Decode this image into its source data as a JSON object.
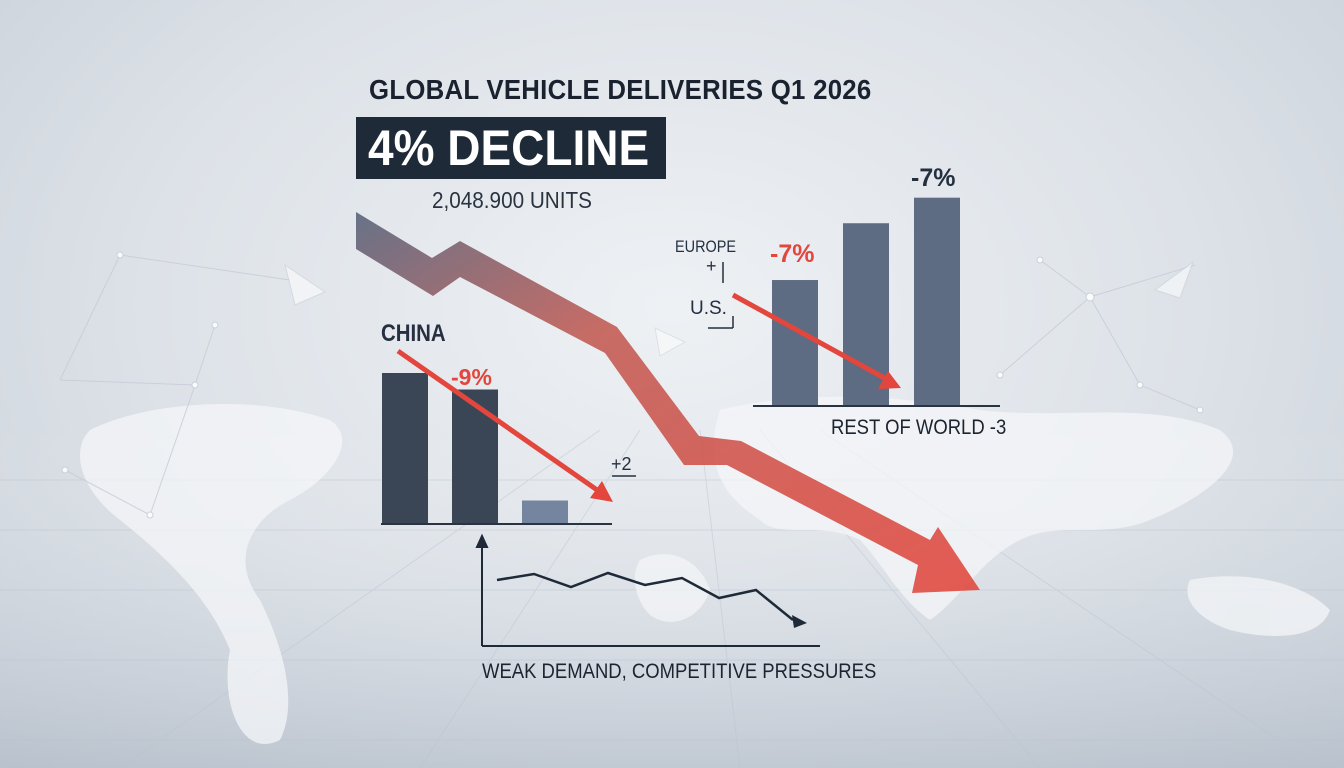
{
  "header": {
    "title": "GLOBAL VEHICLE DELIVERIES Q1 2026",
    "headline": "4% DECLINE",
    "units": "2,048.900 UNITS"
  },
  "labels": {
    "china": "CHINA",
    "china_change": "-9%",
    "plus_two": "+2",
    "europe": "EUROPE",
    "europe_mark": "+",
    "us": "U.S.",
    "europe_change": "-7%",
    "top_change": "-7%",
    "rest_of_world": "REST OF WORLD -3",
    "caption": "WEAK DEMAND, COMPETITIVE PRESSURES"
  },
  "colors": {
    "dark_bar": "#3a4556",
    "mid_bar": "#5d6c82",
    "light_bar": "#7585a0",
    "decline_red": "#e2463c",
    "trend_line": "#1f2a38",
    "headline_box": "#1f2a38"
  },
  "chart_data": [
    {
      "type": "bar",
      "categories": [
        "",
        "",
        ""
      ],
      "values": [
        100,
        89,
        15
      ],
      "annotations": [
        "CHINA",
        "-9%",
        "+2"
      ]
    },
    {
      "type": "bar",
      "categories": [
        "",
        "",
        ""
      ],
      "values": [
        88,
        128,
        146
      ],
      "annotations": [
        "EUROPE",
        "U.S.",
        "-7%",
        "-7%",
        "REST OF WORLD -3"
      ]
    },
    {
      "type": "line",
      "x": [
        0,
        1,
        2,
        3,
        4,
        5,
        6,
        7,
        8
      ],
      "values": [
        48,
        54,
        41,
        55,
        43,
        50,
        30,
        38,
        8
      ],
      "annotations": [
        "WEAK DEMAND, COMPETITIVE PRESSURES"
      ]
    }
  ]
}
